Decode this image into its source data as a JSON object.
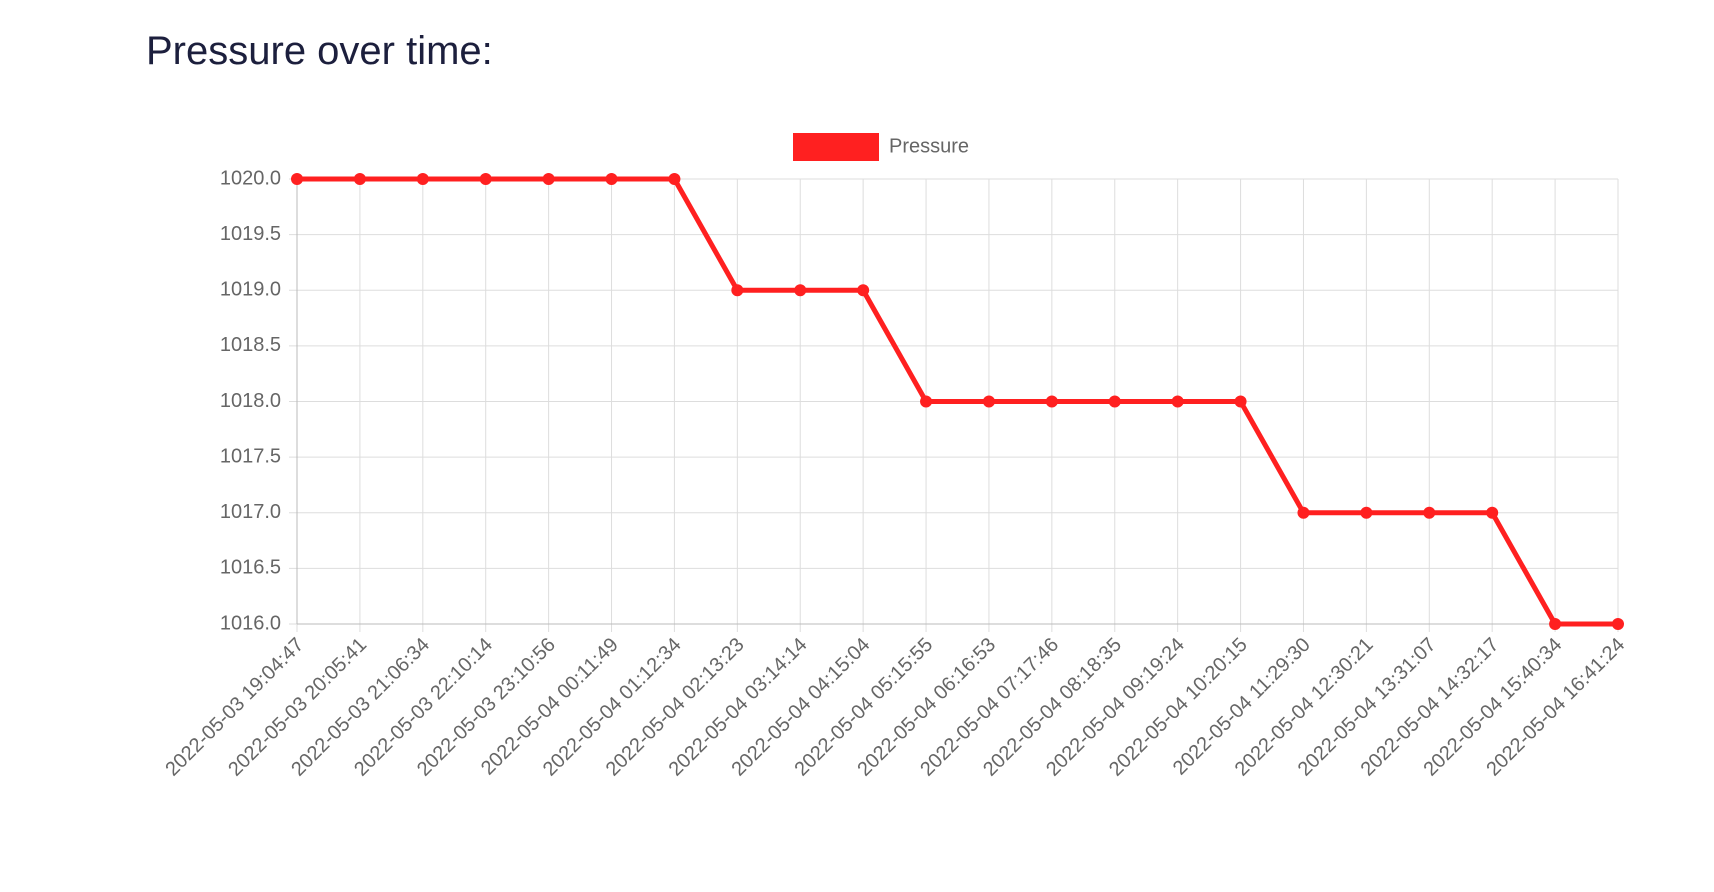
{
  "chart_data": {
    "type": "line",
    "title": "Pressure over time:",
    "categories": [
      "2022-05-03 19:04:47",
      "2022-05-03 20:05:41",
      "2022-05-03 21:06:34",
      "2022-05-03 22:10:14",
      "2022-05-03 23:10:56",
      "2022-05-04 00:11:49",
      "2022-05-04 01:12:34",
      "2022-05-04 02:13:23",
      "2022-05-04 03:14:14",
      "2022-05-04 04:15:04",
      "2022-05-04 05:15:55",
      "2022-05-04 06:16:53",
      "2022-05-04 07:17:46",
      "2022-05-04 08:18:35",
      "2022-05-04 09:19:24",
      "2022-05-04 10:20:15",
      "2022-05-04 11:29:30",
      "2022-05-04 12:30:21",
      "2022-05-04 13:31:07",
      "2022-05-04 14:32:17",
      "2022-05-04 15:40:34",
      "2022-05-04 16:41:24"
    ],
    "series": [
      {
        "name": "Pressure",
        "color": "#ff2020",
        "values": [
          1020,
          1020,
          1020,
          1020,
          1020,
          1020,
          1020,
          1019,
          1019,
          1019,
          1018,
          1018,
          1018,
          1018,
          1018,
          1018,
          1017,
          1017,
          1017,
          1017,
          1016,
          1016
        ]
      }
    ],
    "ylim": [
      1016,
      1020
    ],
    "yticks": [
      {
        "value": 1016,
        "label": "1016.0"
      },
      {
        "value": 1016.5,
        "label": "1016.5"
      },
      {
        "value": 1017,
        "label": "1017.0"
      },
      {
        "value": 1017.5,
        "label": "1017.5"
      },
      {
        "value": 1018,
        "label": "1018.0"
      },
      {
        "value": 1018.5,
        "label": "1018.5"
      },
      {
        "value": 1019,
        "label": "1019.0"
      },
      {
        "value": 1019.5,
        "label": "1019.5"
      },
      {
        "value": 1020,
        "label": "1020.0"
      }
    ],
    "grid": true,
    "legend": "top"
  }
}
